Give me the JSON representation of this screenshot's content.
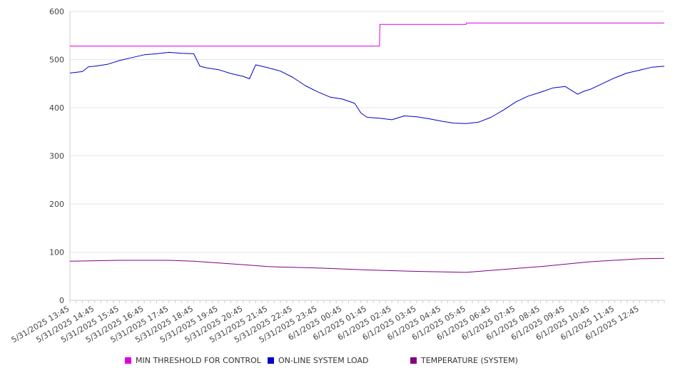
{
  "chart_data": {
    "type": "line",
    "title": "",
    "xlabel": "",
    "ylabel": "",
    "ylim": [
      0,
      600
    ],
    "yticks": [
      0,
      100,
      200,
      300,
      400,
      500,
      600
    ],
    "grid": true,
    "legend_position": "bottom",
    "x_domain": [
      "5/31/2025 13:45",
      "6/1/2025 13:45"
    ],
    "x_tick_labels": [
      "5/31/2025 13:45",
      "5/31/2025 14:45",
      "5/31/2025 15:45",
      "5/31/2025 16:45",
      "5/31/2025 17:45",
      "5/31/2025 18:45",
      "5/31/2025 19:45",
      "5/31/2025 20:45",
      "5/31/2025 21:45",
      "5/31/2025 22:45",
      "5/31/2025 23:45",
      "6/1/2025 00:45",
      "6/1/2025 01:45",
      "6/1/2025 02:45",
      "6/1/2025 03:45",
      "6/1/2025 04:45",
      "6/1/2025 05:45",
      "6/1/2025 06:45",
      "6/1/2025 07:45",
      "6/1/2025 08:45",
      "6/1/2025 09:45",
      "6/1/2025 10:45",
      "6/1/2025 11:45",
      "6/1/2025 12:45"
    ],
    "series": [
      {
        "name": "MIN THRESHOLD FOR CONTROL",
        "color": "#dd00dd",
        "x": [
          "5/31/2025 13:45",
          "6/1/2025 02:15",
          "6/1/2025 02:16",
          "6/1/2025 05:45",
          "6/1/2025 05:46",
          "6/1/2025 13:45"
        ],
        "values": [
          528,
          528,
          573,
          573,
          576,
          576
        ]
      },
      {
        "name": "ON-LINE SYSTEM LOAD",
        "color": "#0000cc",
        "x": [
          "5/31/2025 13:45",
          "5/31/2025 14:15",
          "5/31/2025 14:30",
          "5/31/2025 14:45",
          "5/31/2025 15:15",
          "5/31/2025 15:45",
          "5/31/2025 16:15",
          "5/31/2025 16:45",
          "5/31/2025 17:15",
          "5/31/2025 17:45",
          "5/31/2025 18:15",
          "5/31/2025 18:45",
          "5/31/2025 19:00",
          "5/31/2025 19:15",
          "5/31/2025 19:45",
          "5/31/2025 20:15",
          "5/31/2025 20:45",
          "5/31/2025 21:00",
          "5/31/2025 21:15",
          "5/31/2025 21:45",
          "5/31/2025 22:15",
          "5/31/2025 22:45",
          "5/31/2025 23:15",
          "5/31/2025 23:45",
          "6/1/2025 00:15",
          "6/1/2025 00:45",
          "6/1/2025 01:15",
          "6/1/2025 01:30",
          "6/1/2025 01:45",
          "6/1/2025 02:15",
          "6/1/2025 02:45",
          "6/1/2025 03:15",
          "6/1/2025 03:45",
          "6/1/2025 04:15",
          "6/1/2025 04:45",
          "6/1/2025 05:15",
          "6/1/2025 05:45",
          "6/1/2025 06:15",
          "6/1/2025 06:45",
          "6/1/2025 07:15",
          "6/1/2025 07:45",
          "6/1/2025 08:15",
          "6/1/2025 08:45",
          "6/1/2025 09:15",
          "6/1/2025 09:45",
          "6/1/2025 10:15",
          "6/1/2025 10:30",
          "6/1/2025 10:45",
          "6/1/2025 11:15",
          "6/1/2025 11:45",
          "6/1/2025 12:15",
          "6/1/2025 12:45",
          "6/1/2025 13:15",
          "6/1/2025 13:45"
        ],
        "values": [
          472,
          475,
          485,
          486,
          490,
          498,
          504,
          510,
          512,
          515,
          513,
          512,
          486,
          483,
          479,
          471,
          465,
          460,
          489,
          483,
          476,
          463,
          446,
          433,
          422,
          418,
          409,
          389,
          380,
          378,
          375,
          383,
          381,
          377,
          372,
          368,
          367,
          370,
          380,
          395,
          412,
          424,
          432,
          441,
          444,
          428,
          434,
          438,
          450,
          462,
          472,
          478,
          484,
          486
        ]
      },
      {
        "name": "TEMPERATURE (SYSTEM)",
        "color": "#800080",
        "x": [
          "5/31/2025 13:45",
          "5/31/2025 15:45",
          "5/31/2025 17:45",
          "5/31/2025 18:45",
          "5/31/2025 20:45",
          "5/31/2025 21:45",
          "5/31/2025 23:45",
          "6/1/2025 01:45",
          "6/1/2025 03:45",
          "6/1/2025 05:45",
          "6/1/2025 06:45",
          "6/1/2025 08:45",
          "6/1/2025 10:45",
          "6/1/2025 12:45",
          "6/1/2025 13:45"
        ],
        "values": [
          81,
          83,
          83,
          81,
          74,
          70,
          67,
          63,
          60,
          58,
          62,
          70,
          80,
          86,
          87
        ]
      }
    ]
  }
}
